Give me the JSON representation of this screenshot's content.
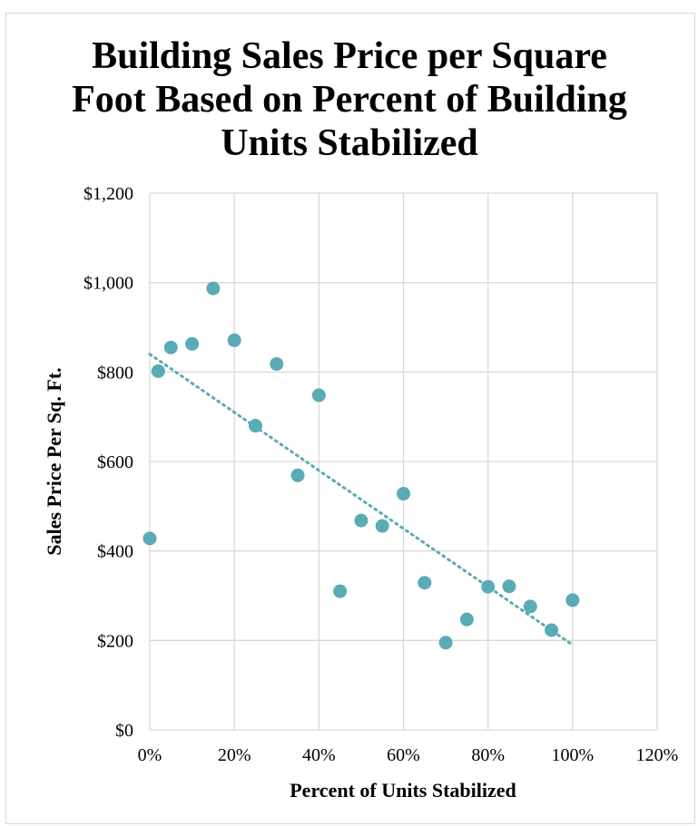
{
  "chart_data": {
    "type": "scatter",
    "title": "Building Sales Price per Square Foot Based on Percent of Building Units Stabilized",
    "xlabel": "Percent of Units Stabilized",
    "ylabel": "Sales Price Per Sq. Ft.",
    "xlim": [
      0,
      1.2
    ],
    "ylim": [
      0,
      1200
    ],
    "x_ticks": [
      0,
      0.2,
      0.4,
      0.6,
      0.8,
      1.0,
      1.2
    ],
    "x_tick_labels": [
      "0%",
      "20%",
      "40%",
      "60%",
      "80%",
      "100%",
      "120%"
    ],
    "y_ticks": [
      0,
      200,
      400,
      600,
      800,
      1000,
      1200
    ],
    "y_tick_labels": [
      "$0",
      "$200",
      "$400",
      "$600",
      "$800",
      "$1,000",
      "$1,200"
    ],
    "grid": true,
    "legend": "none",
    "marker_color": "#5aabb5",
    "trendline": {
      "type": "linear",
      "style": "dotted",
      "color": "#5aabb5",
      "x": [
        0,
        1.0
      ],
      "y": [
        840,
        190
      ]
    },
    "series": [
      {
        "points": [
          {
            "x": 0.0,
            "y": 428
          },
          {
            "x": 0.02,
            "y": 802
          },
          {
            "x": 0.05,
            "y": 855
          },
          {
            "x": 0.1,
            "y": 863
          },
          {
            "x": 0.15,
            "y": 987
          },
          {
            "x": 0.2,
            "y": 871
          },
          {
            "x": 0.25,
            "y": 680
          },
          {
            "x": 0.3,
            "y": 818
          },
          {
            "x": 0.35,
            "y": 569
          },
          {
            "x": 0.4,
            "y": 748
          },
          {
            "x": 0.45,
            "y": 310
          },
          {
            "x": 0.5,
            "y": 468
          },
          {
            "x": 0.55,
            "y": 456
          },
          {
            "x": 0.6,
            "y": 528
          },
          {
            "x": 0.65,
            "y": 329
          },
          {
            "x": 0.7,
            "y": 195
          },
          {
            "x": 0.75,
            "y": 247
          },
          {
            "x": 0.8,
            "y": 320
          },
          {
            "x": 0.85,
            "y": 321
          },
          {
            "x": 0.9,
            "y": 276
          },
          {
            "x": 0.95,
            "y": 223
          },
          {
            "x": 1.0,
            "y": 290
          }
        ]
      }
    ]
  }
}
